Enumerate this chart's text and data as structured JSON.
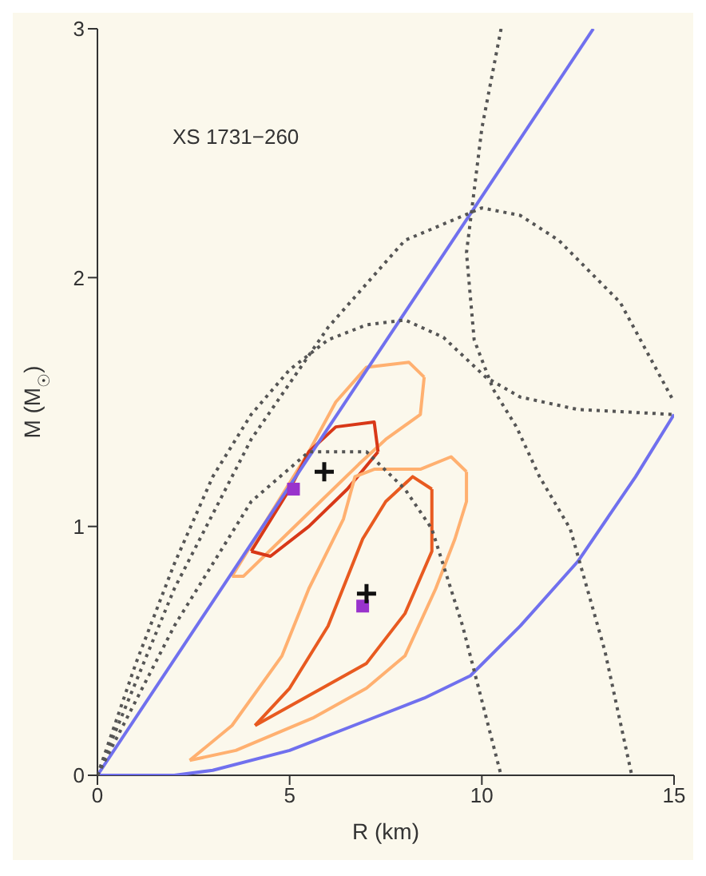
{
  "chart_data": {
    "type": "line",
    "xlabel": "R (km)",
    "ylabel": "M (M$_{☉}$)",
    "annotations": [
      "XS 1731−260"
    ],
    "xlim": [
      0,
      15
    ],
    "xticks": [
      0,
      5,
      10,
      15
    ],
    "ylim": [
      0,
      3
    ],
    "yticks": [
      0,
      1,
      2,
      3
    ],
    "grid": false,
    "legend": false,
    "marker": "none",
    "series": [
      {
        "color": "#ffb070",
        "x": [
          3.5,
          4.5,
          5.5,
          6.2,
          7,
          8.1,
          8.5
        ],
        "values": [
          0.8,
          1.05,
          1.3,
          1.5,
          1.64,
          1.66,
          1.6
        ]
      },
      {
        "color": "#ffb070",
        "x": [
          3.5,
          3.8,
          4.8,
          5.8,
          6.8,
          7.5,
          8.4,
          8.5
        ],
        "values": [
          0.8,
          0.8,
          0.95,
          1.1,
          1.25,
          1.35,
          1.45,
          1.6
        ]
      },
      {
        "color": "#d83818",
        "x": [
          4,
          5,
          5.5,
          6.2,
          7.2,
          7.3
        ],
        "values": [
          0.9,
          1.15,
          1.3,
          1.4,
          1.42,
          1.3
        ]
      },
      {
        "color": "#d83818",
        "x": [
          4,
          4.5,
          5.5,
          6.5,
          7.3
        ],
        "values": [
          0.9,
          0.88,
          1,
          1.15,
          1.3
        ]
      },
      {
        "color": "#ffb070",
        "x": [
          2.4,
          3.5,
          4.8,
          5.5,
          6.4,
          6.7,
          7.2,
          8.4,
          9.2,
          9.6
        ],
        "values": [
          0.06,
          0.2,
          0.48,
          0.75,
          1.03,
          1.2,
          1.23,
          1.23,
          1.28,
          1.22
        ]
      },
      {
        "color": "#ffb070",
        "x": [
          2.4,
          3.6,
          5.6,
          7,
          8,
          8.8,
          9.3,
          9.6,
          9.6
        ],
        "values": [
          0.06,
          0.1,
          0.23,
          0.35,
          0.48,
          0.75,
          0.95,
          1.1,
          1.22
        ]
      },
      {
        "color": "#e85a20",
        "x": [
          4.1,
          5,
          6,
          6.9,
          7.5,
          8.2,
          8.7
        ],
        "values": [
          0.2,
          0.35,
          0.6,
          0.95,
          1.1,
          1.2,
          1.15
        ]
      },
      {
        "color": "#e85a20",
        "x": [
          4.1,
          5.5,
          7,
          8,
          8.7,
          8.7
        ],
        "values": [
          0.2,
          0.32,
          0.45,
          0.65,
          0.9,
          1.15
        ]
      },
      {
        "type": "line",
        "color": "#7070ee",
        "x": [
          0,
          12.9
        ],
        "values": [
          0,
          3
        ]
      },
      {
        "type": "line",
        "color": "#7070ee",
        "x": [
          0,
          2,
          3,
          5,
          7,
          8.5,
          9.7,
          11,
          12.5,
          14,
          15
        ],
        "values": [
          0,
          0,
          0.02,
          0.1,
          0.22,
          0.31,
          0.4,
          0.6,
          0.86,
          1.2,
          1.45
        ]
      },
      {
        "type": "line",
        "color": "#555555",
        "line_style": "dotted",
        "x": [
          0,
          2,
          4,
          5.5,
          7,
          8,
          8.7,
          9.5,
          10,
          10.5
        ],
        "values": [
          0,
          0.6,
          1.1,
          1.3,
          1.3,
          1.15,
          0.99,
          0.6,
          0.3,
          0
        ]
      },
      {
        "type": "line",
        "color": "#555555",
        "line_style": "dotted",
        "x": [
          0,
          1,
          2,
          3,
          4,
          5,
          6,
          7,
          8,
          9,
          10.1,
          11,
          12.5,
          15
        ],
        "values": [
          0,
          0.45,
          0.85,
          1.2,
          1.45,
          1.63,
          1.75,
          1.81,
          1.83,
          1.76,
          1.6,
          1.52,
          1.47,
          1.45
        ]
      },
      {
        "type": "line",
        "color": "#555555",
        "line_style": "dotted",
        "x": [
          0,
          2,
          4,
          6,
          8,
          10,
          11,
          12,
          13.6,
          15
        ],
        "values": [
          0,
          0.75,
          1.35,
          1.8,
          2.15,
          2.28,
          2.25,
          2.15,
          1.9,
          1.5
        ]
      },
      {
        "type": "line",
        "color": "#555555",
        "line_style": "dotted",
        "x": [
          10.5,
          10,
          9.6,
          9.8,
          10.3,
          10.9,
          11.5,
          12.3,
          13.2,
          13.9
        ],
        "values": [
          3,
          2.6,
          2.1,
          1.75,
          1.55,
          1.4,
          1.2,
          0.99,
          0.5,
          0
        ]
      },
      {
        "type": "scatter",
        "marker": "square",
        "color": "#9933cc",
        "x": [
          5.1,
          6.9
        ],
        "values": [
          1.15,
          0.68
        ]
      },
      {
        "type": "scatter",
        "marker": "cross",
        "color": "#111111",
        "x": [
          5.9,
          7
        ],
        "values": [
          1.22,
          0.73
        ]
      }
    ]
  }
}
